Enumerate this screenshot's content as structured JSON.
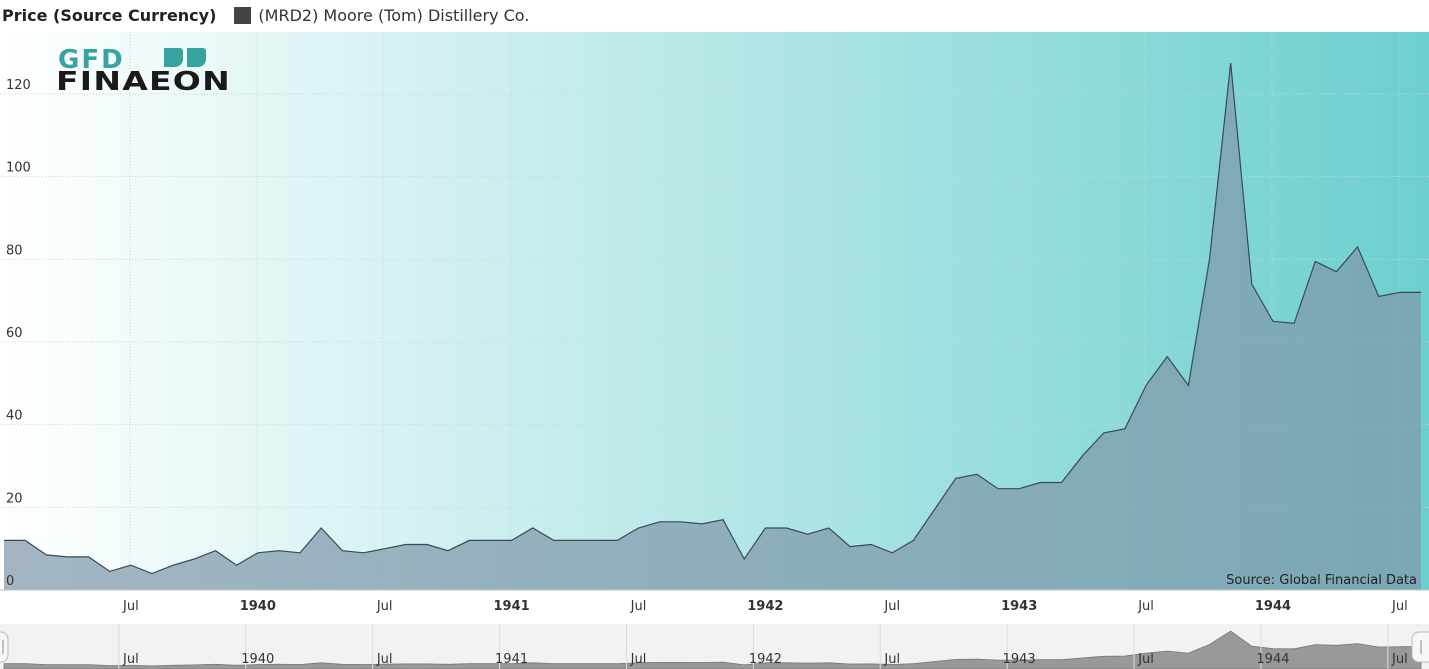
{
  "legend": {
    "title": "Price (Source Currency)",
    "series_name": "(MRD2) Moore (Tom) Distillery Co."
  },
  "logo": {
    "line1": "GFD",
    "line2": "FINAEON"
  },
  "source": "Source: Global Financial Data",
  "colors": {
    "bg_left": "#ffffff",
    "bg_right": "#6ccfcf",
    "area_fill": "#7f99ab",
    "line": "#3a4a55",
    "logo_teal": "#36a3a0",
    "logo_dark": "#1a1a1a"
  },
  "chart_data": {
    "type": "area",
    "title": "",
    "xlabel": "",
    "ylabel": "Price (Source Currency)",
    "ylim": [
      0,
      135
    ],
    "xlim": [
      "1939-01",
      "1944-08"
    ],
    "yticks": [
      0,
      20,
      40,
      60,
      80,
      100,
      120
    ],
    "xticks": [
      {
        "date": "1939-07",
        "label": "Jul",
        "bold": false
      },
      {
        "date": "1940-01",
        "label": "1940",
        "bold": true
      },
      {
        "date": "1940-07",
        "label": "Jul",
        "bold": false
      },
      {
        "date": "1941-01",
        "label": "1941",
        "bold": true
      },
      {
        "date": "1941-07",
        "label": "Jul",
        "bold": false
      },
      {
        "date": "1942-01",
        "label": "1942",
        "bold": true
      },
      {
        "date": "1942-07",
        "label": "Jul",
        "bold": false
      },
      {
        "date": "1943-01",
        "label": "1943",
        "bold": true
      },
      {
        "date": "1943-07",
        "label": "Jul",
        "bold": false
      },
      {
        "date": "1944-01",
        "label": "1944",
        "bold": true
      },
      {
        "date": "1944-07",
        "label": "Jul",
        "bold": false
      }
    ],
    "grid": true,
    "series": [
      {
        "name": "(MRD2) Moore (Tom) Distillery Co.",
        "x": [
          "1939-01",
          "1939-02",
          "1939-03",
          "1939-04",
          "1939-05",
          "1939-06",
          "1939-07",
          "1939-08",
          "1939-09",
          "1939-10",
          "1939-11",
          "1939-12",
          "1940-01",
          "1940-02",
          "1940-03",
          "1940-04",
          "1940-05",
          "1940-06",
          "1940-07",
          "1940-08",
          "1940-09",
          "1940-10",
          "1940-11",
          "1940-12",
          "1941-01",
          "1941-02",
          "1941-03",
          "1941-04",
          "1941-05",
          "1941-06",
          "1941-07",
          "1941-08",
          "1941-09",
          "1941-10",
          "1941-11",
          "1941-12",
          "1942-01",
          "1942-02",
          "1942-03",
          "1942-04",
          "1942-05",
          "1942-06",
          "1942-07",
          "1942-08",
          "1942-09",
          "1942-10",
          "1942-11",
          "1942-12",
          "1943-01",
          "1943-02",
          "1943-03",
          "1943-04",
          "1943-05",
          "1943-06",
          "1943-07",
          "1943-08",
          "1943-09",
          "1943-10",
          "1943-11",
          "1943-12",
          "1944-01",
          "1944-02",
          "1944-03",
          "1944-04",
          "1944-05",
          "1944-06",
          "1944-07",
          "1944-08"
        ],
        "values": [
          12,
          12,
          8.5,
          8,
          8,
          4.5,
          6,
          4,
          6,
          7.5,
          9.5,
          6,
          9,
          9.5,
          9,
          15,
          9.5,
          9,
          10,
          11,
          11,
          9.5,
          12,
          12,
          12,
          15,
          12,
          12,
          12,
          12,
          15,
          16.5,
          16.5,
          16,
          17,
          7.5,
          15,
          15,
          13.5,
          15,
          10.5,
          11,
          9,
          12,
          19.5,
          27,
          28,
          24.5,
          24.5,
          26,
          26,
          32.5,
          38,
          39,
          49.5,
          56.5,
          49.5,
          80,
          127.5,
          74,
          65,
          64.5,
          79.5,
          77,
          83,
          71,
          72,
          72
        ]
      }
    ]
  }
}
